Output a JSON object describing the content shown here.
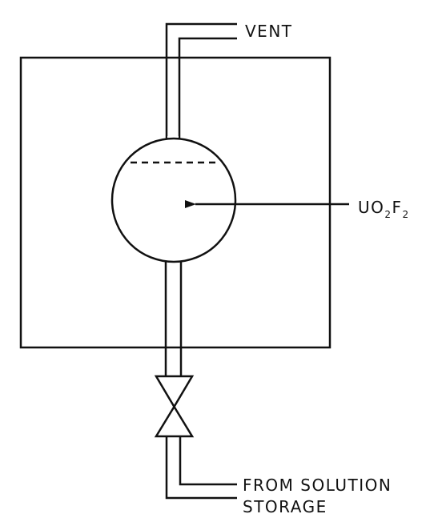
{
  "labels": {
    "vent": "VENT",
    "formula": {
      "u": "U",
      "o": "O",
      "o_sub": "2",
      "f": "F",
      "f_sub": "2"
    },
    "source_line1": "FROM SOLUTION",
    "source_line2": "STORAGE"
  }
}
